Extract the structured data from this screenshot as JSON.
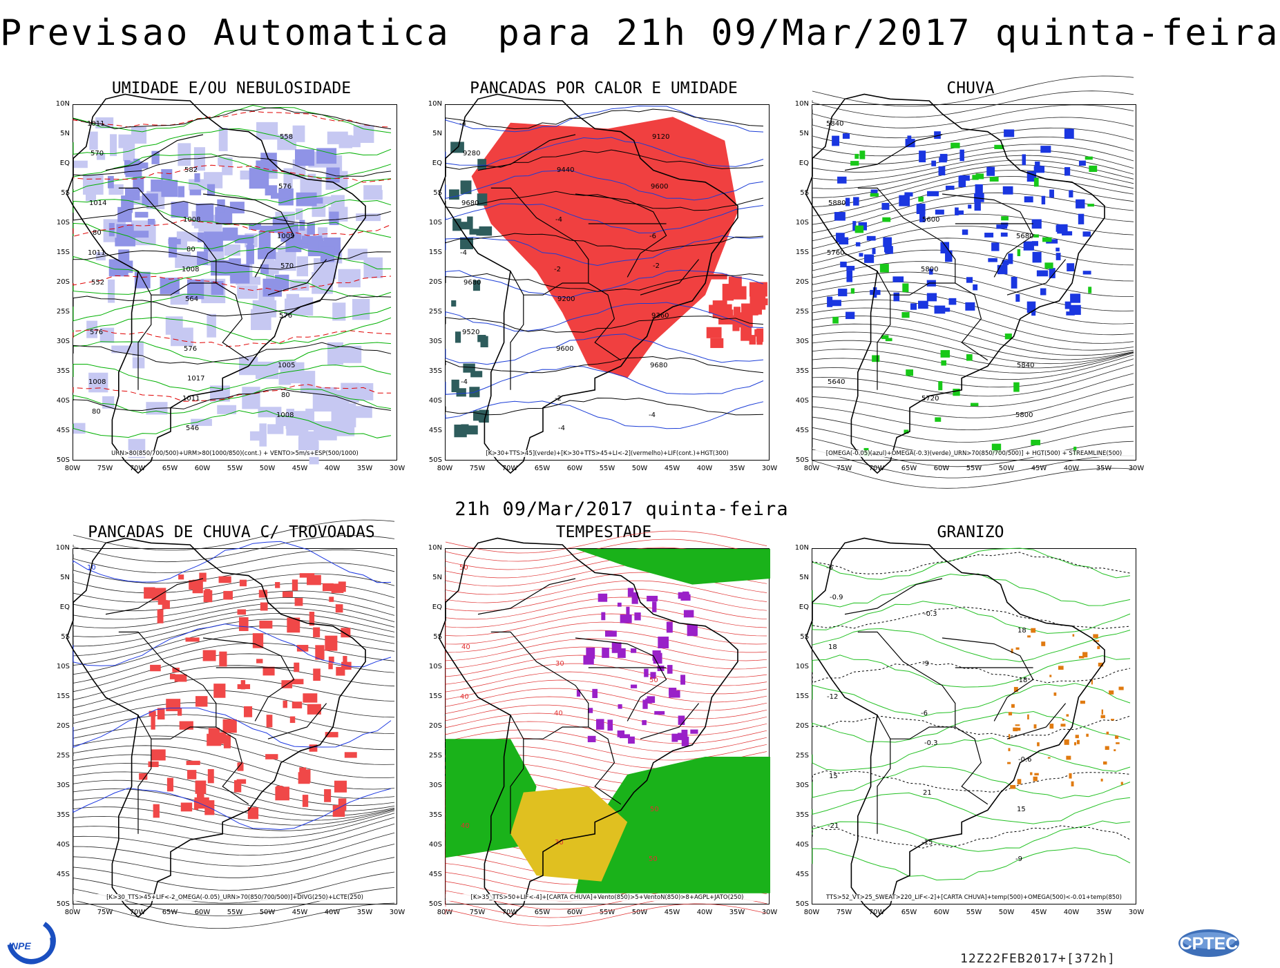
{
  "header": {
    "title": "Previsao Automatica  para 21h 09/Mar/2017 quinta-feira",
    "subtitle": "21h 09/Mar/2017 quinta-feira"
  },
  "axes": {
    "lat_labels": [
      "10N",
      "5N",
      "EQ",
      "5S",
      "10S",
      "15S",
      "20S",
      "25S",
      "30S",
      "35S",
      "40S",
      "45S",
      "50S"
    ],
    "lon_labels": [
      "80W",
      "75W",
      "70W",
      "65W",
      "60W",
      "55W",
      "50W",
      "45W",
      "40W",
      "35W",
      "30W"
    ]
  },
  "panels": [
    {
      "title": "UMIDADE E/OU NEBULOSIDADE",
      "caption": "URN>80(850/700/500)+URM>80(1000/850)(cont.) + VENTO>5m/s+ESP(500/1000)",
      "labels": [
        "1011",
        "1008",
        "1008",
        "1011",
        "1011",
        "1005",
        "1008",
        "1008",
        "1005",
        "1014",
        "576",
        "576",
        "576",
        "582",
        "576",
        "570",
        "564",
        "558",
        "552",
        "546",
        "570",
        "80",
        "80",
        "80",
        "80",
        "1017"
      ],
      "colors": {
        "fill": "#8f93e6",
        "fill_light": "#c6c8f2",
        "green": "#00b000",
        "red": "#e00000"
      }
    },
    {
      "title": "PANCADAS POR CALOR E UMIDADE",
      "caption": "[K>30+TTS>45](verde)+[K>30+TTS>45+LI<-2](vermelho)+LIF(cont.)+HGT(300)",
      "labels": [
        "-4",
        "-2",
        "-4",
        "-4",
        "-2",
        "-6",
        "-4",
        "-4",
        "9680",
        "9680",
        "9600",
        "9600",
        "9520",
        "9440",
        "9360",
        "9280",
        "9200",
        "9120",
        "9680",
        "-4",
        "-2"
      ],
      "colors": {
        "red": "#f04040",
        "teal": "#2e5c5c",
        "blue": "#1a3cd6"
      }
    },
    {
      "title": "CHUVA",
      "caption": "[OMEGA(-0.05)(azul)+OMEGA(-0.3)(verde)_URN>70(850/700/500)] + HGT(500) + STREAMLINE(500)",
      "labels": [
        "5840",
        "5800",
        "5800",
        "5760",
        "5720",
        "5680",
        "5640",
        "5600",
        "5840",
        "5880"
      ],
      "colors": {
        "blue": "#1a36e0",
        "green": "#18c818"
      }
    },
    {
      "title": "PANCADAS DE CHUVA C/ TROVOADAS",
      "caption": "[K>30_TTS>45+LIF<-2_OMEGA(-0.05)_URN>70(850/700/500)]+DIVG(250)+LCTE(250)",
      "labels": [
        "10"
      ],
      "colors": {
        "red": "#f04848",
        "blue": "#1a36e0"
      }
    },
    {
      "title": "TEMPESTADE",
      "caption": "[K>35_TTS>50+LIF<-4]+[CARTA CHUVA]+Vento(850)>5+VentoN(850)>8+AGPL+JATO(250)",
      "labels": [
        "50",
        "40",
        "50",
        "40",
        "30",
        "50",
        "40",
        "30",
        "50",
        "40"
      ],
      "colors": {
        "green": "#1ab21a",
        "yellow": "#e0c020",
        "purple": "#9a20c8",
        "red": "#e03030"
      }
    },
    {
      "title": "GRANIZO",
      "caption": "TTS>52_VT>25_SWEAT>220_LIF<-2]+[CARTA CHUVA]+temp(500)+OMEGA(500)<-0.01+temp(850)",
      "labels": [
        "-6",
        "-6",
        "-9",
        "-12",
        "-15",
        "-18",
        "-21",
        "-9",
        "15",
        "18",
        "21",
        "18",
        "15",
        "-0.3",
        "-0.6",
        "-0.9",
        "-0.3"
      ],
      "colors": {
        "green": "#22c022",
        "orange": "#e07a10",
        "black": "#000000"
      }
    }
  ],
  "footer": {
    "stamp": "12Z22FEB2017+[372h]",
    "logo_left": "INPE",
    "logo_right": "CPTEC"
  }
}
